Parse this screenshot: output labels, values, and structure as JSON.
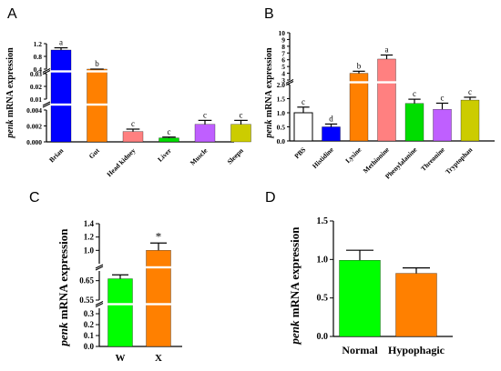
{
  "chart_data": [
    {
      "panel": "A",
      "type": "bar",
      "ylabel_italic": "penk",
      "ylabel_rest": " mRNA expression",
      "yscale": "broken",
      "categories": [
        "Brian",
        "Gut",
        "Head kidney",
        "Liver",
        "Muscle",
        "Sleepn"
      ],
      "values": [
        1.0,
        0.033,
        0.0013,
        0.0005,
        0.0022,
        0.0022
      ],
      "errors": [
        0.07,
        0.003,
        0.0003,
        0.0001,
        0.0005,
        0.0005
      ],
      "colors": [
        "#0000ff",
        "#ff8000",
        "#ff8080",
        "#00dd00",
        "#bf5fff",
        "#cccc00"
      ],
      "letters": [
        "a",
        "b",
        "c",
        "c",
        "c",
        "c"
      ],
      "segments": [
        {
          "range": [
            0,
            0.004
          ],
          "ticks": [
            "0.000",
            "0.002",
            "0.004"
          ]
        },
        {
          "range": [
            0.01,
            0.03
          ],
          "ticks": [
            "0.01",
            "0.02",
            "0.03"
          ]
        },
        {
          "range": [
            0.4,
            1.2
          ],
          "ticks": [
            "0.4",
            "0.8",
            "1.2"
          ]
        }
      ]
    },
    {
      "panel": "B",
      "type": "bar",
      "ylabel_italic": "penk",
      "ylabel_rest": " mRNA expression",
      "yscale": "broken",
      "categories": [
        "PBS",
        "Histidine",
        "Lysine",
        "Methionine",
        "Phenylalanine",
        "Threonine",
        "Tryptophan"
      ],
      "values": [
        1.0,
        0.5,
        4.0,
        6.1,
        1.33,
        1.12,
        1.45
      ],
      "errors": [
        0.2,
        0.1,
        0.3,
        0.6,
        0.15,
        0.22,
        0.1
      ],
      "colors": [
        "#ffffff",
        "#0000ff",
        "#ff8000",
        "#ff8080",
        "#00dd00",
        "#bf5fff",
        "#cccc00"
      ],
      "letters": [
        "c",
        "d",
        "b",
        "a",
        "c",
        "c",
        "c"
      ],
      "segments": [
        {
          "range": [
            0,
            2.0
          ],
          "ticks": [
            "0.0",
            "0.5",
            "1.0",
            "1.5",
            "2.0"
          ]
        },
        {
          "range": [
            3,
            10
          ],
          "ticks": [
            "3",
            "4",
            "5",
            "6",
            "7",
            "8",
            "9",
            "10"
          ]
        }
      ]
    },
    {
      "panel": "C",
      "type": "bar",
      "ylabel_italic": "penk",
      "ylabel_rest": " mRNA expression",
      "yscale": "broken",
      "categories": [
        "W",
        "X"
      ],
      "values": [
        0.66,
        1.0
      ],
      "errors": [
        0.02,
        0.11
      ],
      "colors": [
        "#00ff00",
        "#ff8000"
      ],
      "letters": [
        "",
        "*"
      ],
      "segments": [
        {
          "range": [
            0,
            0.35
          ],
          "ticks": [
            "0.0",
            "0.1",
            "0.2",
            "0.3"
          ]
        },
        {
          "range": [
            0.55,
            0.7
          ],
          "ticks": [
            "0.55",
            "0.65"
          ]
        },
        {
          "range": [
            0.8,
            1.4
          ],
          "ticks": [
            "1.0",
            "1.2",
            "1.4"
          ]
        }
      ]
    },
    {
      "panel": "D",
      "type": "bar",
      "ylabel_italic": "penk",
      "ylabel_rest": " mRNA expression",
      "categories": [
        "Normal",
        "Hypophagic"
      ],
      "values": [
        0.99,
        0.82
      ],
      "errors": [
        0.13,
        0.07
      ],
      "colors": [
        "#00ff00",
        "#ff8000"
      ],
      "ylim": [
        0,
        1.5
      ],
      "ticks": [
        "0.0",
        "0.5",
        "1.0",
        "1.5"
      ]
    }
  ]
}
